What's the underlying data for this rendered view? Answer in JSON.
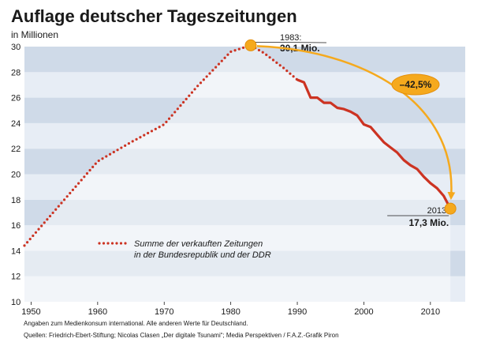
{
  "chart_data": {
    "type": "line",
    "title": "Auflage deutscher Tageszeitungen",
    "unit_label": "in Millionen",
    "xlim": [
      1949,
      2014
    ],
    "ylim": [
      10,
      30
    ],
    "x_ticks": [
      1950,
      1960,
      1970,
      1980,
      1990,
      2000,
      2010
    ],
    "y_ticks": [
      10,
      12,
      14,
      16,
      18,
      20,
      22,
      24,
      26,
      28,
      30
    ],
    "grid": "horizontal alternating bands",
    "series": [
      {
        "name": "Summe der verkauften Zeitungen in der Bundesrepublik und der DDR",
        "color": "#cc3322",
        "points": [
          {
            "x": 1949,
            "y": 14.4
          },
          {
            "x": 1955,
            "y": 18.0
          },
          {
            "x": 1960,
            "y": 21.0
          },
          {
            "x": 1965,
            "y": 22.5
          },
          {
            "x": 1970,
            "y": 23.9
          },
          {
            "x": 1975,
            "y": 26.9
          },
          {
            "x": 1980,
            "y": 29.6
          },
          {
            "x": 1983,
            "y": 30.1
          },
          {
            "x": 1985,
            "y": 29.5
          },
          {
            "x": 1988,
            "y": 28.3
          },
          {
            "x": 1990,
            "y": 27.4
          },
          {
            "x": 1991,
            "y": 27.2
          },
          {
            "x": 1992,
            "y": 26.0
          },
          {
            "x": 1993,
            "y": 26.0
          },
          {
            "x": 1994,
            "y": 25.6
          },
          {
            "x": 1995,
            "y": 25.6
          },
          {
            "x": 1996,
            "y": 25.2
          },
          {
            "x": 1997,
            "y": 25.1
          },
          {
            "x": 1998,
            "y": 24.9
          },
          {
            "x": 1999,
            "y": 24.6
          },
          {
            "x": 2000,
            "y": 23.9
          },
          {
            "x": 2001,
            "y": 23.7
          },
          {
            "x": 2002,
            "y": 23.1
          },
          {
            "x": 2003,
            "y": 22.5
          },
          {
            "x": 2004,
            "y": 22.1
          },
          {
            "x": 2005,
            "y": 21.7
          },
          {
            "x": 2006,
            "y": 21.1
          },
          {
            "x": 2007,
            "y": 20.7
          },
          {
            "x": 2008,
            "y": 20.4
          },
          {
            "x": 2009,
            "y": 19.8
          },
          {
            "x": 2010,
            "y": 19.3
          },
          {
            "x": 2011,
            "y": 18.9
          },
          {
            "x": 2012,
            "y": 18.3
          },
          {
            "x": 2013,
            "y": 17.3
          }
        ]
      }
    ],
    "dotted_until_x": 1990,
    "legend": {
      "line1": "Summe der verkauften Zeitungen",
      "line2": "in der Bundesrepublik und der DDR"
    },
    "annotations": {
      "peak": {
        "year_label": "1983:",
        "value_label": "30,1 Mio.",
        "x": 1983,
        "y": 30.1
      },
      "end": {
        "year_label": "2013:",
        "value_label": "17,3 Mio.",
        "x": 2013,
        "y": 17.3
      },
      "change_label": "–42,5%"
    },
    "colors": {
      "band_light": "#e7edf5",
      "band_dark": "#cfdae8",
      "area_fill": "#ffffff",
      "line": "#cc3322",
      "highlight": "#f5a91d"
    },
    "footnote": "Angaben zum Medienkonsum international. Alle anderen Werte für Deutschland.",
    "sources": "Quellen: Friedrich-Ebert-Stiftung; Nicolas Clasen „Der digitale Tsunami“; Media Perspektiven / F.A.Z.-Grafik Piron"
  }
}
